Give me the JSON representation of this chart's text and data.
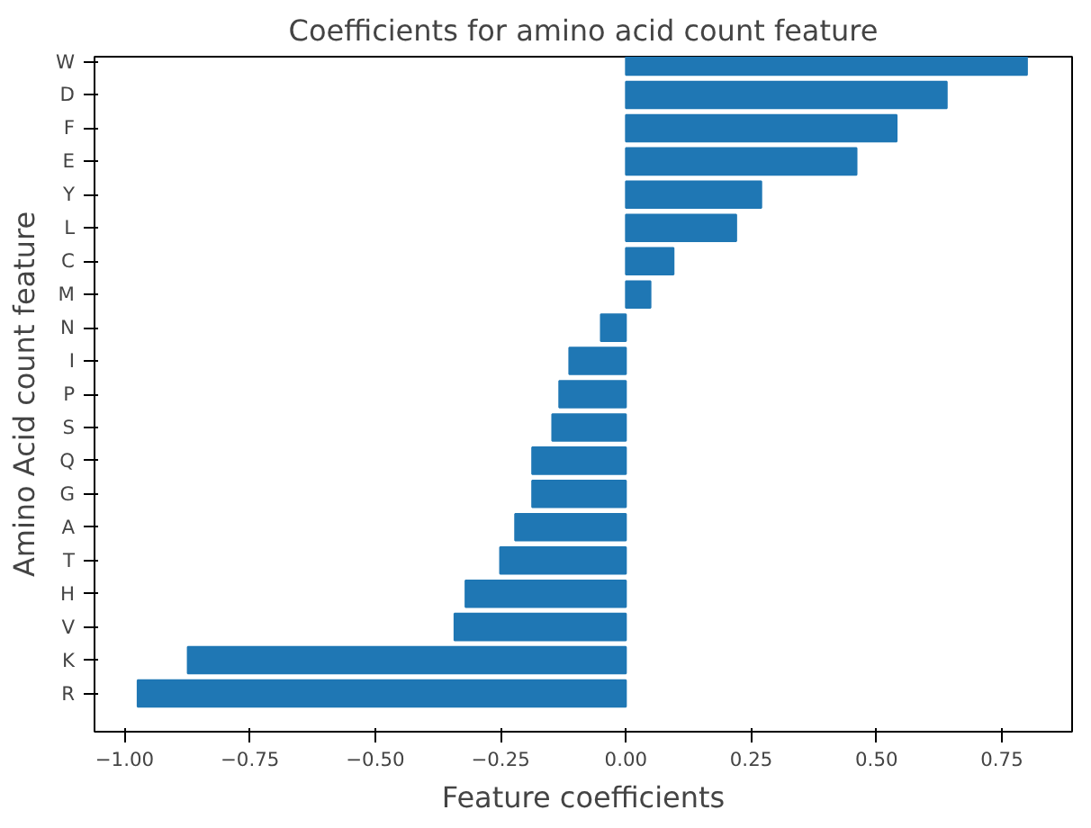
{
  "chart_data": {
    "type": "bar",
    "orientation": "horizontal",
    "title": "Coefficients for amino acid count feature",
    "xlabel": "Feature coefficients",
    "ylabel": "Amino Acid count feature",
    "categories": [
      "W",
      "D",
      "F",
      "E",
      "Y",
      "L",
      "C",
      "M",
      "N",
      "I",
      "P",
      "S",
      "Q",
      "G",
      "A",
      "T",
      "H",
      "V",
      "K",
      "R"
    ],
    "values": [
      0.8,
      0.64,
      0.54,
      0.46,
      0.27,
      0.22,
      0.095,
      0.049,
      -0.05,
      -0.113,
      -0.133,
      -0.147,
      -0.187,
      -0.187,
      -0.221,
      -0.251,
      -0.32,
      -0.342,
      -0.874,
      -0.974
    ],
    "color": "#1f77b4",
    "xlim": [
      -1.06,
      0.89
    ],
    "xticks": [
      {
        "value": -1.0,
        "label": "−1.00"
      },
      {
        "value": -0.75,
        "label": "−0.75"
      },
      {
        "value": -0.5,
        "label": "−0.50"
      },
      {
        "value": -0.25,
        "label": "−0.25"
      },
      {
        "value": 0.0,
        "label": "0.00"
      },
      {
        "value": 0.25,
        "label": "0.25"
      },
      {
        "value": 0.5,
        "label": "0.50"
      },
      {
        "value": 0.75,
        "label": "0.75"
      }
    ],
    "grid": false
  }
}
